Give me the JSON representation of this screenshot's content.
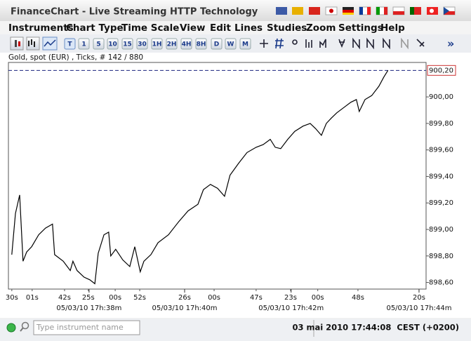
{
  "window": {
    "title": "FinanceChart - Live Streaming HTTP Technology"
  },
  "menu": [
    "Instruments",
    "Chart Type",
    "Time Scale",
    "View",
    "Edit",
    "Lines",
    "Studies",
    "Zoom",
    "Settings",
    "Help"
  ],
  "toolbar": [
    "T",
    "1",
    "5",
    "10",
    "15",
    "30",
    "1H",
    "2H",
    "4H",
    "8H",
    "D",
    "W",
    "M"
  ],
  "status": {
    "search_placeholder": "Type instrument name",
    "datetime": "03 mai 2010 17:44:08  CEST (+0200)"
  },
  "chart_data": {
    "type": "line",
    "title": "Gold, spot (EUR) , Ticks, # 142 / 880",
    "x": [
      1.3,
      2.7,
      4.3,
      5.6,
      7.0,
      8.9,
      11.6,
      14.2,
      16.9,
      17.7,
      21.0,
      23.7,
      24.7,
      26.3,
      29.0,
      31.2,
      33.1,
      34.4,
      36.6,
      38.4,
      39.2,
      41.1,
      43.8,
      46.5,
      48.4,
      50.5,
      51.9,
      54.6,
      57.3,
      61.3,
      65.3,
      68.8,
      72.6,
      74.7,
      77.4,
      80.1,
      82.8,
      84.9,
      88.2,
      91.4,
      94.9,
      97.6,
      100.3,
      102.2,
      104.3,
      107.0,
      109.7,
      112.9,
      115.6,
      117.7,
      119.9,
      121.8,
      123.7,
      125.8,
      128.5,
      131.2,
      133.3,
      134.4,
      136.6,
      139.2,
      141.9,
      143.8,
      145.4
    ],
    "values": [
      898.81,
      899.12,
      899.26,
      898.76,
      898.83,
      898.87,
      898.96,
      899.01,
      899.04,
      898.81,
      898.76,
      898.69,
      898.76,
      898.69,
      898.64,
      898.62,
      898.59,
      898.82,
      898.96,
      898.98,
      898.8,
      898.85,
      898.77,
      898.72,
      898.87,
      898.68,
      898.76,
      898.81,
      898.9,
      898.96,
      899.06,
      899.14,
      899.19,
      899.3,
      899.34,
      899.31,
      899.25,
      899.41,
      899.5,
      899.58,
      899.62,
      899.64,
      899.68,
      899.62,
      899.61,
      899.68,
      899.74,
      899.78,
      899.8,
      899.76,
      899.71,
      899.8,
      899.84,
      899.88,
      899.92,
      899.96,
      899.98,
      899.89,
      899.98,
      900.01,
      900.08,
      900.15,
      900.2
    ],
    "color": "#000000",
    "xlim": [
      0,
      160
    ],
    "xticks": [
      {
        "value": 1.3,
        "label": "30s"
      },
      {
        "value": 9.1,
        "label": "01s"
      },
      {
        "value": 21.5,
        "label": "42s"
      },
      {
        "value": 30.6,
        "label": "25s"
      },
      {
        "value": 40.9,
        "label": "00s"
      },
      {
        "value": 50.3,
        "label": "52s"
      },
      {
        "value": 67.5,
        "label": "26s"
      },
      {
        "value": 78.8,
        "label": "00s"
      },
      {
        "value": 94.9,
        "label": "47s"
      },
      {
        "value": 108.1,
        "label": "23s"
      },
      {
        "value": 118.5,
        "label": "00s"
      },
      {
        "value": 133.9,
        "label": "48s"
      },
      {
        "value": 157.3,
        "label": "20s"
      }
    ],
    "xticks_major": [
      {
        "value": 30.9,
        "label": "05/03/10 17h:38m"
      },
      {
        "value": 67.5,
        "label": "05/03/10 17h:40m"
      },
      {
        "value": 108.3,
        "label": "05/03/10 17h:42m"
      },
      {
        "value": 157.3,
        "label": "05/03/10 17h:44m"
      }
    ],
    "ylim": [
      898.55,
      900.26
    ],
    "yticks": [
      {
        "value": 898.6,
        "label": "898,60"
      },
      {
        "value": 898.8,
        "label": "898,80"
      },
      {
        "value": 899.0,
        "label": "899,00"
      },
      {
        "value": 899.2,
        "label": "899,20"
      },
      {
        "value": 899.4,
        "label": "899,40"
      },
      {
        "value": 899.6,
        "label": "899,60"
      },
      {
        "value": 899.8,
        "label": "899,80"
      },
      {
        "value": 900.0,
        "label": "900,00"
      }
    ],
    "last_value": {
      "value": 900.2,
      "label": "900,20"
    },
    "last_value_color": "#1a237e"
  }
}
